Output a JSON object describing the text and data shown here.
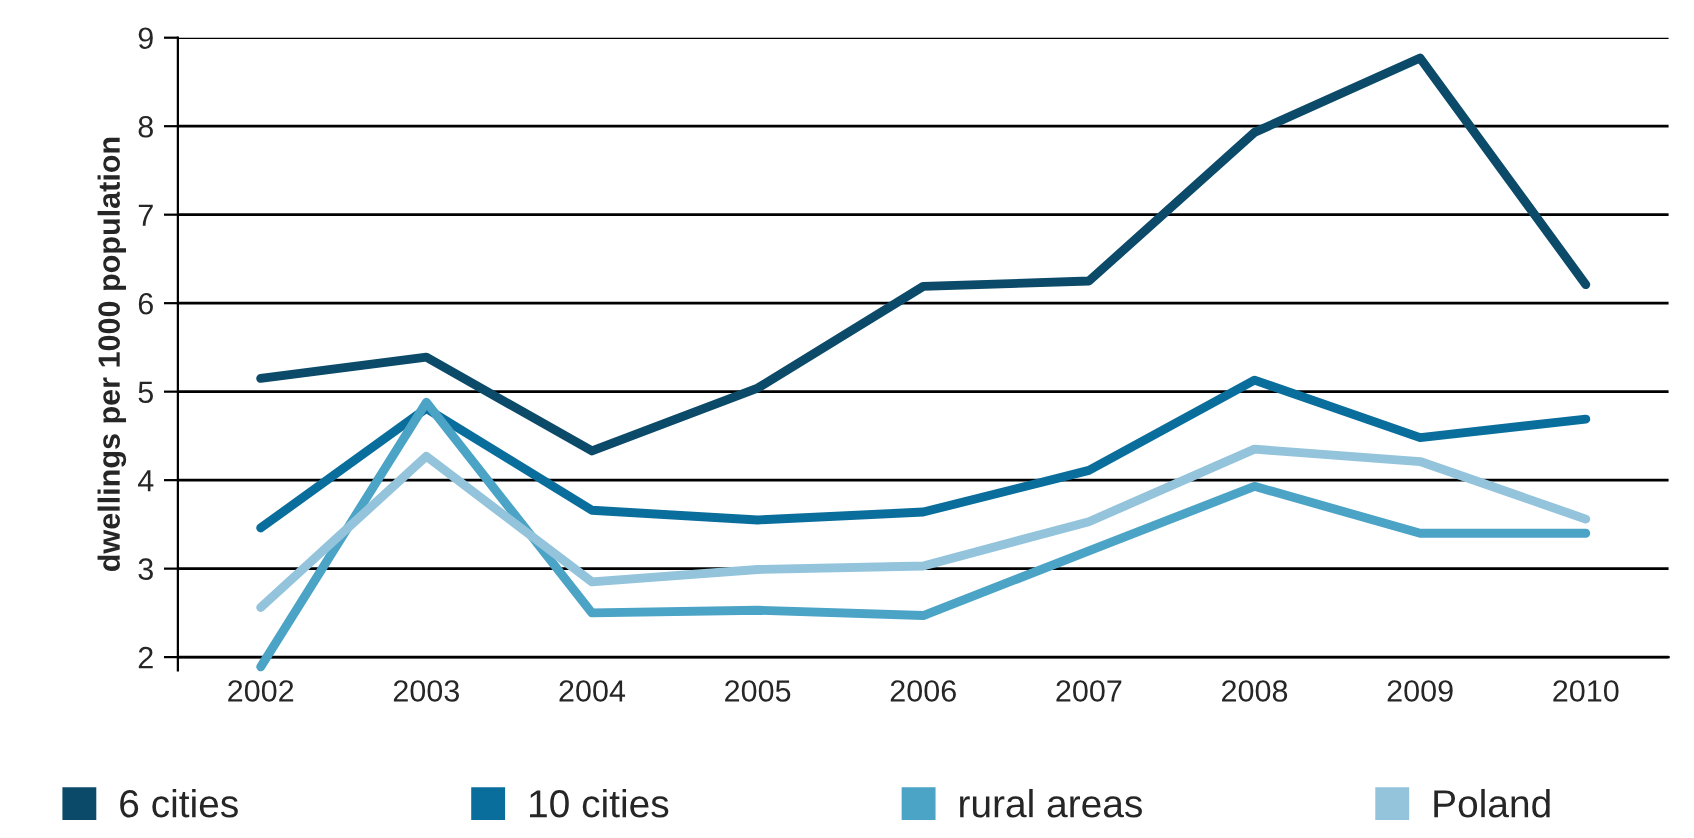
{
  "chart_data": {
    "type": "line",
    "ylabel": "dwellings per 1000 population",
    "categories": [
      "2002",
      "2003",
      "2004",
      "2005",
      "2006",
      "2007",
      "2008",
      "2009",
      "2010"
    ],
    "series": [
      {
        "name": "6 cities",
        "color": "#0b4a69",
        "values": [
          5.15,
          5.39,
          4.33,
          5.04,
          6.19,
          6.25,
          7.93,
          8.77,
          6.21
        ]
      },
      {
        "name": "10 cities",
        "color": "#0a6e9c",
        "values": [
          3.46,
          4.81,
          3.66,
          3.55,
          3.64,
          4.11,
          5.13,
          4.48,
          4.69
        ]
      },
      {
        "name": "rural areas",
        "color": "#4ba3c6",
        "values": [
          1.89,
          4.88,
          2.5,
          2.53,
          2.47,
          3.2,
          3.93,
          3.4,
          3.4
        ]
      },
      {
        "name": "Poland",
        "color": "#93c4dc",
        "values": [
          2.56,
          4.27,
          2.85,
          2.99,
          3.03,
          3.53,
          4.35,
          4.21,
          3.56
        ]
      }
    ],
    "ylim": [
      1.85,
      9
    ],
    "yticks": [
      2,
      3,
      4,
      5,
      6,
      7,
      8,
      9
    ],
    "grid": "y",
    "legend": "bottom",
    "marker": "none",
    "line_style": "solid"
  }
}
